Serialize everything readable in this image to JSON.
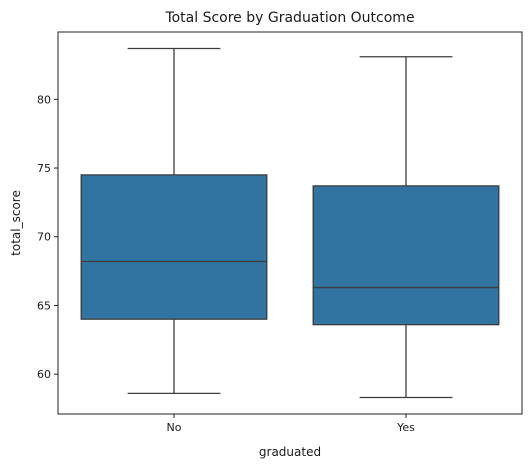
{
  "chart_data": {
    "type": "box",
    "title": "Total Score by Graduation Outcome",
    "xlabel": "graduated",
    "ylabel": "total_score",
    "ylim": [
      57.1,
      84.9
    ],
    "yticks": [
      60,
      65,
      70,
      75,
      80
    ],
    "categories": [
      "No",
      "Yes"
    ],
    "boxes": [
      {
        "category": "No",
        "whisker_low": 58.6,
        "q1": 64.0,
        "median": 68.2,
        "q3": 74.5,
        "whisker_high": 83.7
      },
      {
        "category": "Yes",
        "whisker_low": 58.3,
        "q1": 63.6,
        "median": 66.3,
        "q3": 73.7,
        "whisker_high": 83.1
      }
    ],
    "box_color": "#3274a1",
    "line_color": "#3d3d3d",
    "grid": false,
    "legend": "none"
  }
}
